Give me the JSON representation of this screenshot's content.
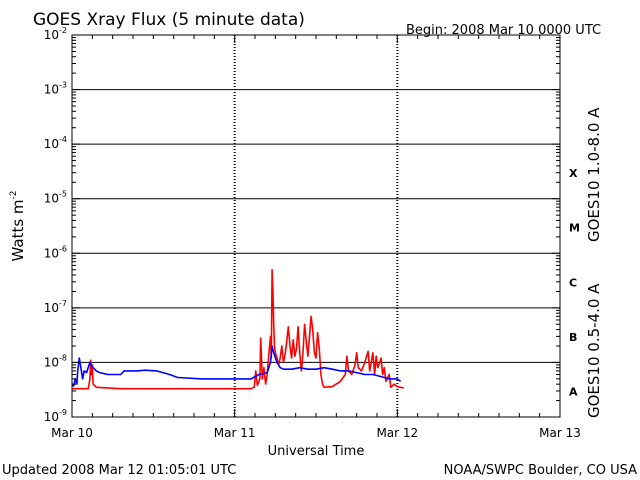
{
  "chart_data": {
    "type": "line",
    "title": "GOES Xray Flux (5 minute data)",
    "begin_label": "Begin:  2008 Mar 10 0000 UTC",
    "xlabel": "Universal Time",
    "ylabel": "Watts m",
    "ylabel_exponent": "-2",
    "footer_left": "Updated 2008 Mar 12 01:05:01 UTC",
    "footer_right": "NOAA/SWPC Boulder, CO USA",
    "x_unit": "days since 2008 Mar 10 0000 UTC",
    "xlim": [
      0,
      3
    ],
    "x_ticks": [
      {
        "x": 0,
        "label": "Mar 10"
      },
      {
        "x": 1,
        "label": "Mar 11"
      },
      {
        "x": 2,
        "label": "Mar 12"
      },
      {
        "x": 3,
        "label": "Mar 13"
      }
    ],
    "y_scale": "log",
    "ylim": [
      1e-09,
      0.01
    ],
    "y_ticks": [
      {
        "exp": -9,
        "base": "10",
        "power": "-9"
      },
      {
        "exp": -8,
        "base": "10",
        "power": "-8"
      },
      {
        "exp": -7,
        "base": "10",
        "power": "-7"
      },
      {
        "exp": -6,
        "base": "10",
        "power": "-6"
      },
      {
        "exp": -5,
        "base": "10",
        "power": "-5"
      },
      {
        "exp": -4,
        "base": "10",
        "power": "-4"
      },
      {
        "exp": -3,
        "base": "10",
        "power": "-3"
      },
      {
        "exp": -2,
        "base": "10",
        "power": "-2"
      }
    ],
    "flare_classes": [
      {
        "label": "A",
        "exp": -8
      },
      {
        "label": "B",
        "exp": -7
      },
      {
        "label": "C",
        "exp": -6
      },
      {
        "label": "M",
        "exp": -5
      },
      {
        "label": "X",
        "exp": -4
      }
    ],
    "grid": true,
    "series": [
      {
        "name": "GOES10 1.0-8.0 A",
        "color": "#ff0000",
        "points": [
          [
            0.0,
            3.3e-09
          ],
          [
            0.1,
            3.3e-09
          ],
          [
            0.11,
            5e-09
          ],
          [
            0.115,
            1.1e-08
          ],
          [
            0.12,
            6e-09
          ],
          [
            0.125,
            9e-09
          ],
          [
            0.13,
            4e-09
          ],
          [
            0.15,
            3.5e-09
          ],
          [
            0.3,
            3.3e-09
          ],
          [
            0.6,
            3.3e-09
          ],
          [
            0.9,
            3.3e-09
          ],
          [
            1.1,
            3.3e-09
          ],
          [
            1.12,
            3.5e-09
          ],
          [
            1.13,
            7e-09
          ],
          [
            1.14,
            3.8e-09
          ],
          [
            1.155,
            5e-09
          ],
          [
            1.16,
            2.8e-08
          ],
          [
            1.17,
            5e-09
          ],
          [
            1.18,
            8e-09
          ],
          [
            1.19,
            4e-09
          ],
          [
            1.2,
            6e-09
          ],
          [
            1.21,
            1.4e-08
          ],
          [
            1.22,
            3e-08
          ],
          [
            1.225,
            1.2e-08
          ],
          [
            1.23,
            5e-07
          ],
          [
            1.235,
            2e-07
          ],
          [
            1.24,
            5e-08
          ],
          [
            1.245,
            2e-08
          ],
          [
            1.25,
            1.5e-08
          ],
          [
            1.26,
            1.2e-08
          ],
          [
            1.27,
            9e-09
          ],
          [
            1.28,
            1.2e-08
          ],
          [
            1.29,
            2e-08
          ],
          [
            1.3,
            1e-08
          ],
          [
            1.31,
            1.4e-08
          ],
          [
            1.32,
            2.4e-08
          ],
          [
            1.33,
            4.5e-08
          ],
          [
            1.34,
            2e-08
          ],
          [
            1.35,
            1.2e-08
          ],
          [
            1.36,
            2.6e-08
          ],
          [
            1.37,
            1.3e-08
          ],
          [
            1.38,
            1.8e-08
          ],
          [
            1.39,
            4.5e-08
          ],
          [
            1.4,
            1.5e-08
          ],
          [
            1.41,
            7e-09
          ],
          [
            1.42,
            1.5e-08
          ],
          [
            1.43,
            5e-08
          ],
          [
            1.44,
            2.5e-08
          ],
          [
            1.45,
            1.3e-08
          ],
          [
            1.46,
            3e-08
          ],
          [
            1.47,
            7e-08
          ],
          [
            1.48,
            4e-08
          ],
          [
            1.49,
            1.5e-08
          ],
          [
            1.5,
            1.2e-08
          ],
          [
            1.51,
            3.5e-08
          ],
          [
            1.52,
            1.8e-08
          ],
          [
            1.53,
            6e-09
          ],
          [
            1.54,
            4e-09
          ],
          [
            1.55,
            3.5e-09
          ],
          [
            1.6,
            3.6e-09
          ],
          [
            1.65,
            4.5e-09
          ],
          [
            1.68,
            6e-09
          ],
          [
            1.69,
            1.3e-08
          ],
          [
            1.7,
            7e-09
          ],
          [
            1.72,
            6e-09
          ],
          [
            1.74,
            9e-09
          ],
          [
            1.75,
            1.5e-08
          ],
          [
            1.76,
            8e-09
          ],
          [
            1.78,
            7e-09
          ],
          [
            1.8,
            1e-08
          ],
          [
            1.82,
            1.6e-08
          ],
          [
            1.83,
            7e-09
          ],
          [
            1.85,
            1.5e-08
          ],
          [
            1.86,
            6e-09
          ],
          [
            1.87,
            1.3e-08
          ],
          [
            1.88,
            8e-09
          ],
          [
            1.9,
            1.2e-08
          ],
          [
            1.91,
            6e-09
          ],
          [
            1.92,
            8e-09
          ],
          [
            1.93,
            4.5e-09
          ],
          [
            1.95,
            6e-09
          ],
          [
            1.96,
            3.5e-09
          ],
          [
            1.98,
            4e-09
          ],
          [
            2.0,
            3.6e-09
          ],
          [
            2.02,
            3.5e-09
          ],
          [
            2.04,
            3.4e-09
          ]
        ]
      },
      {
        "name": "GOES10 0.5-4.0 A",
        "color": "#0000ff",
        "points": [
          [
            0.0,
            4e-09
          ],
          [
            0.01,
            3.7e-09
          ],
          [
            0.02,
            5e-09
          ],
          [
            0.03,
            4e-09
          ],
          [
            0.035,
            7e-09
          ],
          [
            0.045,
            1.2e-08
          ],
          [
            0.055,
            8e-09
          ],
          [
            0.065,
            5e-09
          ],
          [
            0.075,
            7e-09
          ],
          [
            0.09,
            6.5e-09
          ],
          [
            0.11,
            1e-08
          ],
          [
            0.13,
            8e-09
          ],
          [
            0.15,
            7e-09
          ],
          [
            0.17,
            6.5e-09
          ],
          [
            0.22,
            6e-09
          ],
          [
            0.3,
            6e-09
          ],
          [
            0.32,
            7e-09
          ],
          [
            0.4,
            7e-09
          ],
          [
            0.45,
            7.2e-09
          ],
          [
            0.52,
            7e-09
          ],
          [
            0.6,
            6e-09
          ],
          [
            0.65,
            5.3e-09
          ],
          [
            0.8,
            5e-09
          ],
          [
            1.0,
            5e-09
          ],
          [
            1.1,
            5e-09
          ],
          [
            1.15,
            6e-09
          ],
          [
            1.2,
            6.5e-09
          ],
          [
            1.22,
            1e-08
          ],
          [
            1.23,
            2e-08
          ],
          [
            1.24,
            1.5e-08
          ],
          [
            1.26,
            1e-08
          ],
          [
            1.28,
            8e-09
          ],
          [
            1.3,
            7.5e-09
          ],
          [
            1.35,
            7.5e-09
          ],
          [
            1.4,
            8e-09
          ],
          [
            1.45,
            7.5e-09
          ],
          [
            1.5,
            7.5e-09
          ],
          [
            1.55,
            8e-09
          ],
          [
            1.6,
            7.5e-09
          ],
          [
            1.65,
            7e-09
          ],
          [
            1.7,
            7e-09
          ],
          [
            1.75,
            6.5e-09
          ],
          [
            1.8,
            6e-09
          ],
          [
            1.85,
            6e-09
          ],
          [
            1.9,
            5.5e-09
          ],
          [
            1.95,
            5e-09
          ],
          [
            2.0,
            5e-09
          ],
          [
            2.02,
            4.5e-09
          ]
        ]
      }
    ]
  }
}
